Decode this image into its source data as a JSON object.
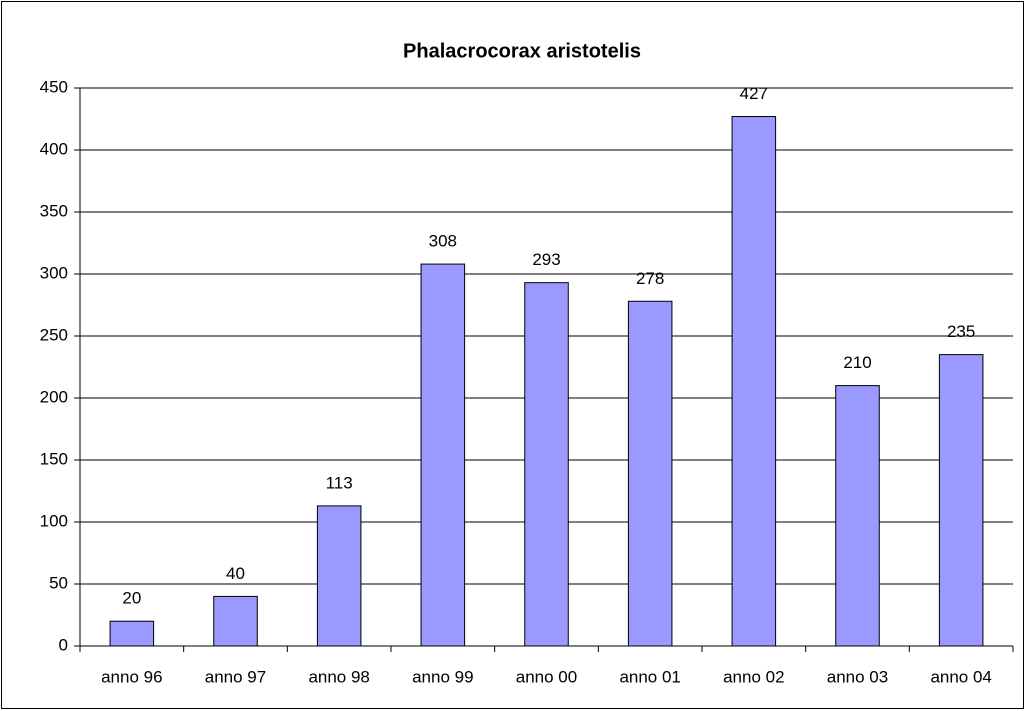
{
  "chart_data": {
    "type": "bar",
    "title": "Phalacrocorax aristotelis",
    "categories": [
      "anno 96",
      "anno 97",
      "anno 98",
      "anno 99",
      "anno 00",
      "anno 01",
      "anno 02",
      "anno 03",
      "anno 04"
    ],
    "values": [
      20,
      40,
      113,
      308,
      293,
      278,
      427,
      210,
      235
    ],
    "color": "#9999ff",
    "ylim": [
      0,
      450
    ],
    "yticks": [
      0,
      50,
      100,
      150,
      200,
      250,
      300,
      350,
      400,
      450
    ],
    "grid": true
  }
}
